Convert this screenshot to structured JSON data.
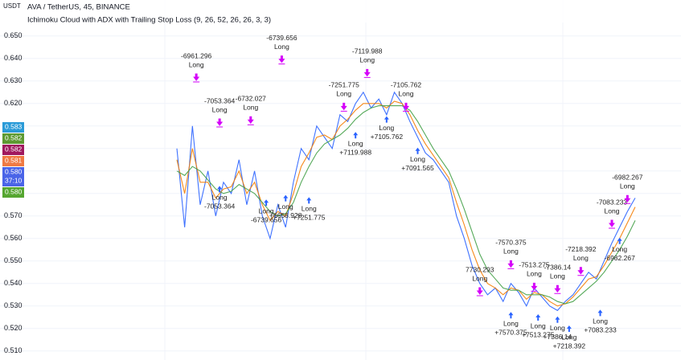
{
  "chart_data": {
    "type": "line",
    "currency": "USDT",
    "title": "AVA / TetherUS, 45, BINANCE",
    "subtitle": "Ichimoku Cloud with ADX with Trailing Stop Loss (9, 26, 52, 26, 26, 3, 3)",
    "xlim": [
      0,
      59
    ],
    "ylim": [
      0.506,
      0.666
    ],
    "yticks": [
      {
        "value": 0.65,
        "label": "0.650"
      },
      {
        "value": 0.64,
        "label": "0.640"
      },
      {
        "value": 0.63,
        "label": "0.630"
      },
      {
        "value": 0.62,
        "label": "0.620"
      },
      {
        "value": 0.61,
        "label": "0.610"
      },
      {
        "value": 0.6,
        "label": "0.600"
      },
      {
        "value": 0.59,
        "label": "0.590"
      },
      {
        "value": 0.58,
        "label": "0.580"
      },
      {
        "value": 0.57,
        "label": "0.570"
      },
      {
        "value": 0.56,
        "label": "0.560"
      },
      {
        "value": 0.55,
        "label": "0.550"
      },
      {
        "value": 0.54,
        "label": "0.540"
      },
      {
        "value": 0.53,
        "label": "0.530"
      },
      {
        "value": 0.52,
        "label": "0.520"
      },
      {
        "value": 0.51,
        "label": "0.510"
      }
    ],
    "grid": true,
    "series": [
      {
        "color": "#2962ff",
        "values": [
          0.6,
          0.565,
          0.61,
          0.575,
          0.59,
          0.57,
          0.585,
          0.58,
          0.595,
          0.575,
          0.59,
          0.57,
          0.56,
          0.575,
          0.565,
          0.585,
          0.6,
          0.595,
          0.61,
          0.605,
          0.6,
          0.615,
          0.612,
          0.62,
          0.625,
          0.618,
          0.622,
          0.615,
          0.625,
          0.62,
          0.612,
          0.605,
          0.598,
          0.595,
          0.59,
          0.585,
          0.57,
          0.56,
          0.548,
          0.54,
          0.535,
          0.538,
          0.532,
          0.54,
          0.536,
          0.53,
          0.538,
          0.534,
          0.53,
          0.528,
          0.532,
          0.535,
          0.54,
          0.545,
          0.542,
          0.55,
          0.558,
          0.565,
          0.572,
          0.578
        ]
      },
      {
        "color": "#f57c00",
        "values": [
          0.595,
          0.58,
          0.6,
          0.585,
          0.585,
          0.578,
          0.582,
          0.583,
          0.59,
          0.58,
          0.585,
          0.575,
          0.568,
          0.572,
          0.57,
          0.58,
          0.592,
          0.598,
          0.605,
          0.606,
          0.604,
          0.61,
          0.613,
          0.617,
          0.62,
          0.62,
          0.62,
          0.618,
          0.621,
          0.62,
          0.615,
          0.608,
          0.602,
          0.597,
          0.592,
          0.587,
          0.576,
          0.566,
          0.555,
          0.546,
          0.54,
          0.538,
          0.535,
          0.538,
          0.537,
          0.533,
          0.536,
          0.535,
          0.532,
          0.53,
          0.531,
          0.534,
          0.538,
          0.542,
          0.543,
          0.548,
          0.554,
          0.56,
          0.567,
          0.574
        ]
      },
      {
        "color": "#43a047",
        "values": [
          0.59,
          0.588,
          0.592,
          0.59,
          0.586,
          0.582,
          0.58,
          0.581,
          0.584,
          0.582,
          0.58,
          0.576,
          0.572,
          0.57,
          0.571,
          0.576,
          0.585,
          0.592,
          0.598,
          0.602,
          0.604,
          0.606,
          0.609,
          0.613,
          0.616,
          0.618,
          0.619,
          0.619,
          0.619,
          0.619,
          0.617,
          0.612,
          0.606,
          0.6,
          0.595,
          0.59,
          0.582,
          0.573,
          0.563,
          0.553,
          0.546,
          0.542,
          0.538,
          0.537,
          0.537,
          0.535,
          0.535,
          0.535,
          0.534,
          0.532,
          0.531,
          0.532,
          0.535,
          0.538,
          0.541,
          0.545,
          0.55,
          0.555,
          0.561,
          0.568
        ]
      }
    ],
    "price_badges": [
      {
        "value": 0.583,
        "label": "0.583",
        "color": "#2a9bd8"
      },
      {
        "value": 0.582,
        "label": "0.582",
        "color": "#5d9a32"
      },
      {
        "value": 0.582,
        "label": "0.582",
        "color": "#a0185e"
      },
      {
        "value": 0.581,
        "label": "0.581",
        "color": "#f07a43"
      },
      {
        "value": 0.58,
        "label": "0.580",
        "color": "#4a64e8",
        "countdown": "37:10"
      },
      {
        "value": 0.58,
        "label": "0.580",
        "color": "#55a630"
      }
    ],
    "annotations": [
      {
        "x": 2.5,
        "y": 0.641,
        "text": [
          "-6961.296",
          "Long"
        ]
      },
      {
        "x": 13.5,
        "y": 0.649,
        "text": [
          "-6739.656",
          "Long"
        ]
      },
      {
        "x": 5.5,
        "y": 0.621,
        "text": [
          "-7053.364",
          "Long"
        ]
      },
      {
        "x": 9.5,
        "y": 0.622,
        "text": [
          "-6732.027",
          "Long"
        ]
      },
      {
        "x": 24.5,
        "y": 0.643,
        "text": [
          "-7119.988",
          "Long"
        ]
      },
      {
        "x": 21.5,
        "y": 0.628,
        "text": [
          "-7251.775",
          "Long"
        ]
      },
      {
        "x": 29.5,
        "y": 0.628,
        "text": [
          "-7105.762",
          "Long"
        ]
      },
      {
        "x": 23,
        "y": 0.602,
        "text": [
          "Long",
          "+7119.988"
        ]
      },
      {
        "x": 14,
        "y": 0.574,
        "text": [
          "Long",
          "+6658.928"
        ]
      },
      {
        "x": 17,
        "y": 0.573,
        "text": [
          "Long",
          "+7251.775"
        ]
      },
      {
        "x": 27,
        "y": 0.609,
        "text": [
          "Long",
          "+7105.762"
        ]
      },
      {
        "x": 31,
        "y": 0.595,
        "text": [
          "Long",
          "+7091.565"
        ]
      },
      {
        "x": 5.5,
        "y": 0.578,
        "text": [
          "Long",
          "-7053.364"
        ]
      },
      {
        "x": 11.5,
        "y": 0.572,
        "text": [
          "Long",
          "-6739.656"
        ]
      },
      {
        "x": 39,
        "y": 0.546,
        "text": [
          "7730.293",
          "Long"
        ]
      },
      {
        "x": 43,
        "y": 0.558,
        "text": [
          "-7570.375",
          "Long"
        ]
      },
      {
        "x": 46,
        "y": 0.548,
        "text": [
          "-7513.275",
          "Long"
        ]
      },
      {
        "x": 49,
        "y": 0.547,
        "text": [
          "-7386.14",
          "Long"
        ]
      },
      {
        "x": 52,
        "y": 0.555,
        "text": [
          "-7218.392",
          "Long"
        ]
      },
      {
        "x": 56,
        "y": 0.576,
        "text": [
          "-7083.233",
          "Long"
        ]
      },
      {
        "x": 58,
        "y": 0.587,
        "text": [
          "-6982.267",
          "Long"
        ]
      },
      {
        "x": 43,
        "y": 0.522,
        "text": [
          "Long",
          "+7570.375"
        ]
      },
      {
        "x": 46.5,
        "y": 0.521,
        "text": [
          "Long",
          "+7513.275"
        ]
      },
      {
        "x": 49,
        "y": 0.52,
        "text": [
          "Long",
          "+7386.14"
        ]
      },
      {
        "x": 50.5,
        "y": 0.516,
        "text": [
          "Long",
          "+7218.392"
        ]
      },
      {
        "x": 54.5,
        "y": 0.523,
        "text": [
          "Long",
          "+7083.233"
        ]
      },
      {
        "x": 57,
        "y": 0.555,
        "text": [
          "Long",
          "-6982.267"
        ]
      }
    ]
  }
}
